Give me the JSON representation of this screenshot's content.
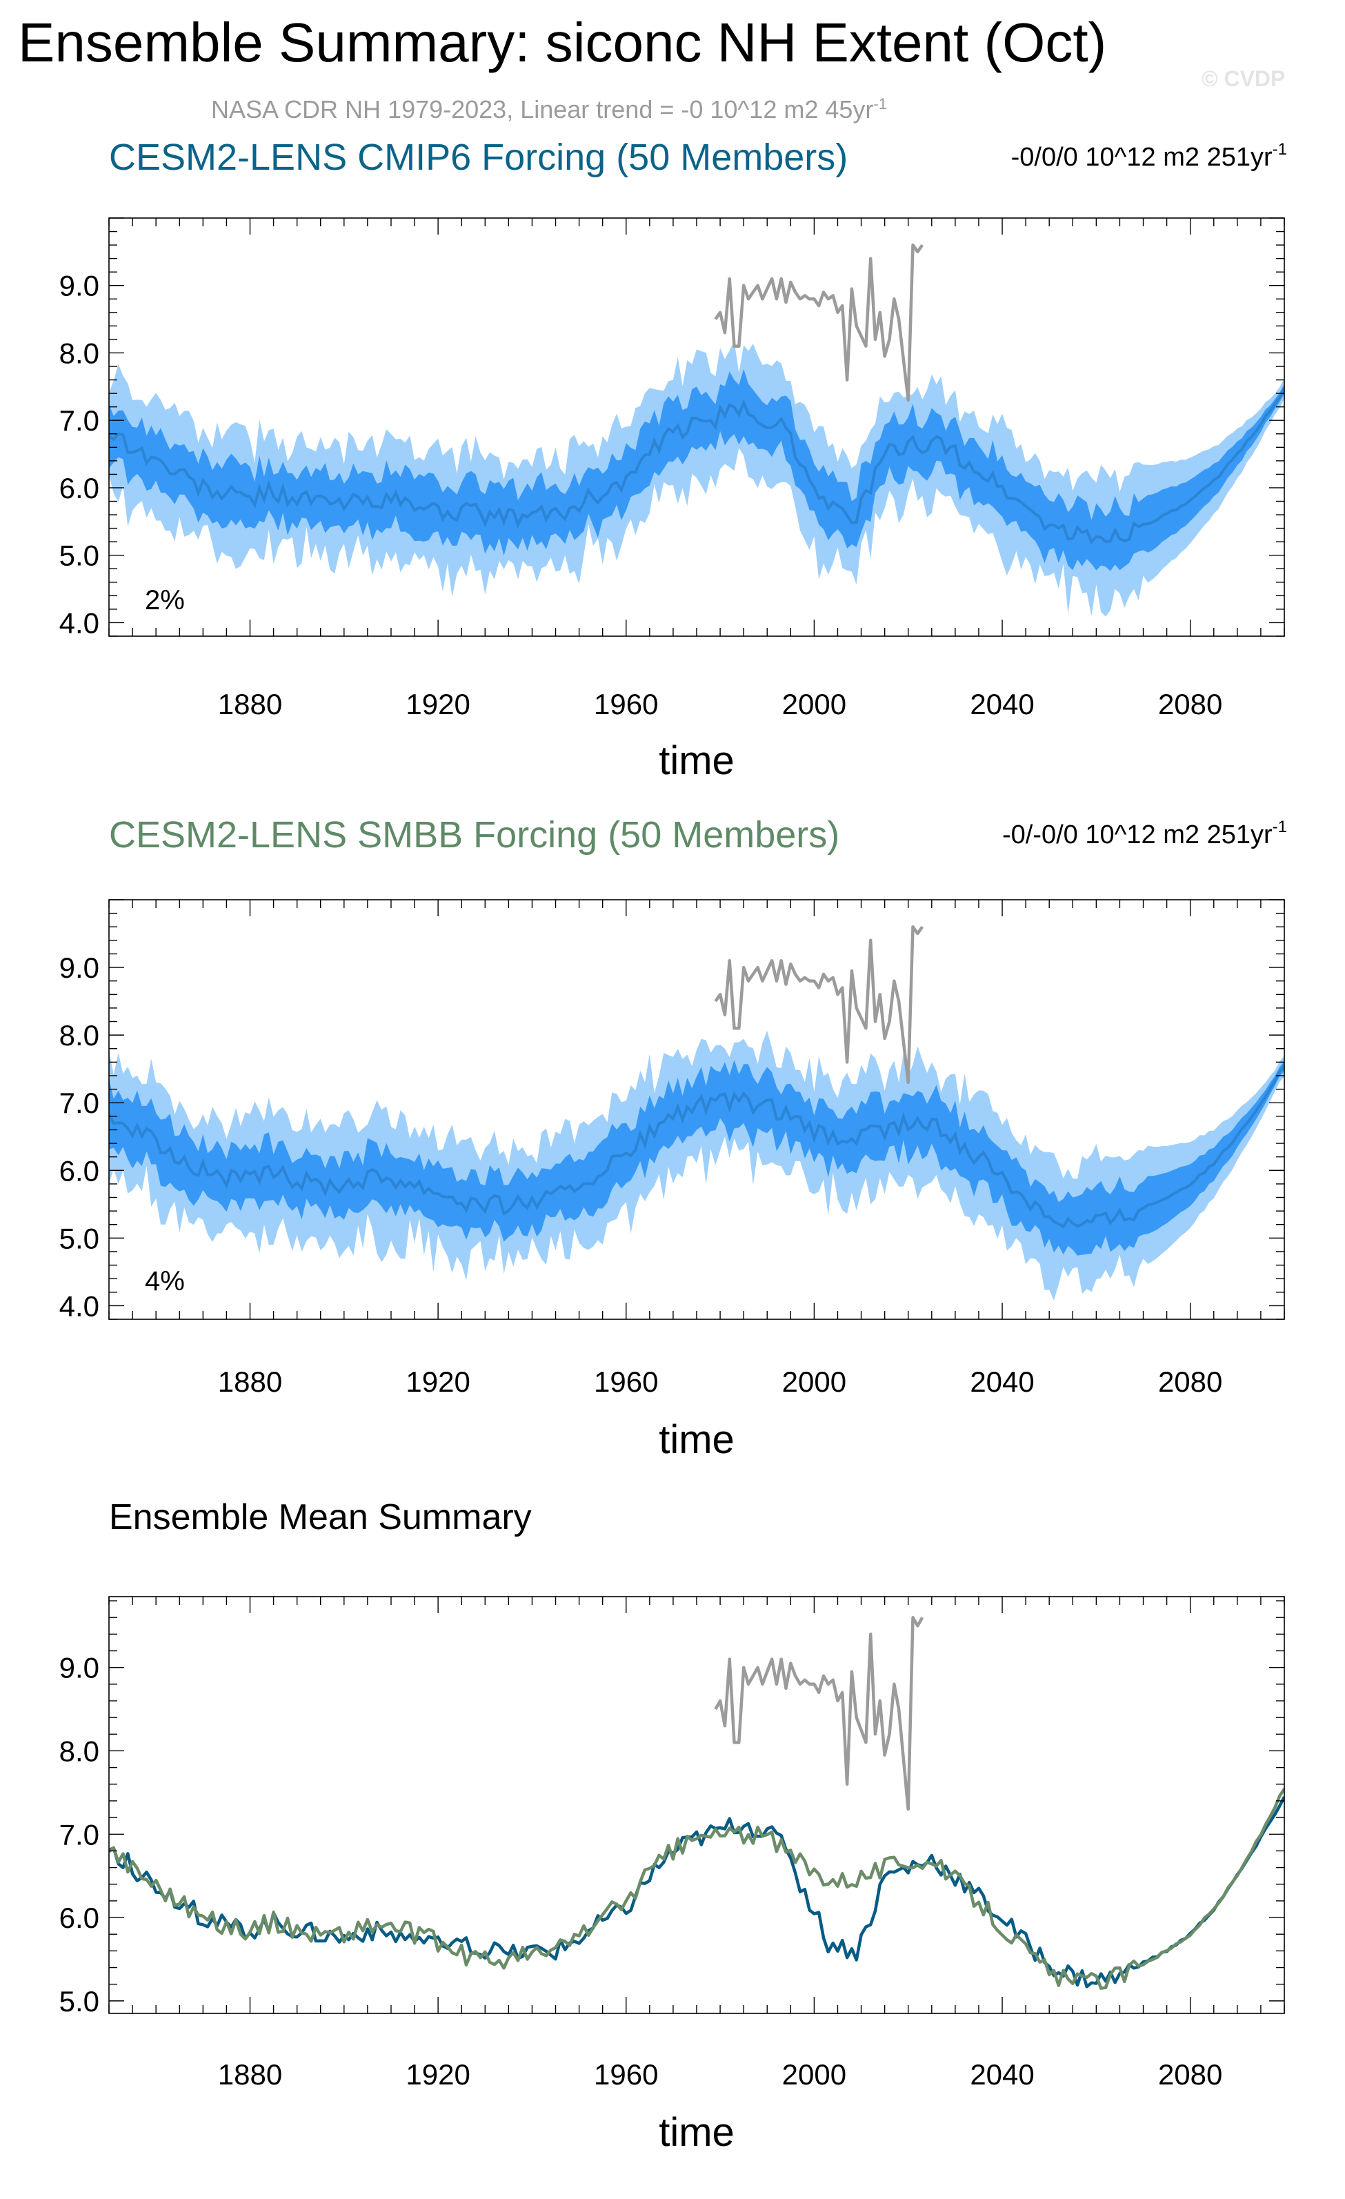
{
  "header": {
    "title": "Ensemble Summary: siconc NH Extent (Oct)",
    "subtitle": "NASA CDR NH 1979-2023, Linear trend = -0 10^12 m2 45yr",
    "subtitle_sup": "-1",
    "watermark": "© CVDP"
  },
  "colors": {
    "cmip6_title": "#0b6389",
    "smbb_title": "#5f8a67",
    "band_outer": "#9fd0fb",
    "band_inner": "#3799f5",
    "mean_line": "#2c84d5",
    "obs_line": "#9b9b9b",
    "cmip6_mean": "#065b85",
    "smbb_mean": "#6b8c68"
  },
  "chart_data": [
    {
      "type": "area",
      "title": "CESM2-LENS CMIP6 Forcing (50 Members)",
      "trend_label": "-0/0/0 10^12 m2 251yr",
      "trend_sup": "-1",
      "percent_label": "2%",
      "xlabel": "time",
      "ylabel": "",
      "xlim": [
        1850,
        2100
      ],
      "ylim": [
        3.8,
        10.0
      ],
      "xticks": [
        1880,
        1920,
        1960,
        2000,
        2040,
        2080
      ],
      "yticks": [
        4.0,
        5.0,
        6.0,
        7.0,
        8.0,
        9.0
      ],
      "ytick_labels": [
        "4.0",
        "5.0",
        "6.0",
        "7.0",
        "8.0",
        "9.0"
      ],
      "ensemble_mean_knots": [
        [
          1850,
          6.85
        ],
        [
          1855,
          6.6
        ],
        [
          1860,
          6.4
        ],
        [
          1865,
          6.2
        ],
        [
          1870,
          6.0
        ],
        [
          1875,
          5.9
        ],
        [
          1880,
          5.85
        ],
        [
          1885,
          5.95
        ],
        [
          1890,
          5.85
        ],
        [
          1895,
          5.8
        ],
        [
          1900,
          5.75
        ],
        [
          1905,
          5.85
        ],
        [
          1910,
          5.8
        ],
        [
          1915,
          5.75
        ],
        [
          1920,
          5.65
        ],
        [
          1925,
          5.65
        ],
        [
          1930,
          5.6
        ],
        [
          1935,
          5.55
        ],
        [
          1940,
          5.6
        ],
        [
          1945,
          5.6
        ],
        [
          1950,
          5.75
        ],
        [
          1955,
          5.95
        ],
        [
          1960,
          6.1
        ],
        [
          1965,
          6.5
        ],
        [
          1970,
          6.8
        ],
        [
          1975,
          6.95
        ],
        [
          1980,
          7.05
        ],
        [
          1985,
          7.15
        ],
        [
          1990,
          7.0
        ],
        [
          1994,
          6.9
        ],
        [
          1997,
          6.4
        ],
        [
          2000,
          6.1
        ],
        [
          2003,
          5.7
        ],
        [
          2006,
          5.65
        ],
        [
          2009,
          5.6
        ],
        [
          2012,
          6.0
        ],
        [
          2015,
          6.5
        ],
        [
          2020,
          6.6
        ],
        [
          2025,
          6.7
        ],
        [
          2030,
          6.5
        ],
        [
          2035,
          6.25
        ],
        [
          2040,
          6.0
        ],
        [
          2045,
          5.7
        ],
        [
          2050,
          5.45
        ],
        [
          2055,
          5.3
        ],
        [
          2060,
          5.25
        ],
        [
          2065,
          5.3
        ],
        [
          2070,
          5.45
        ],
        [
          2075,
          5.6
        ],
        [
          2080,
          5.8
        ],
        [
          2085,
          6.1
        ],
        [
          2090,
          6.5
        ],
        [
          2095,
          6.95
        ],
        [
          2100,
          7.45
        ]
      ],
      "obs": {
        "x": [
          1979,
          1980,
          1981,
          1982,
          1983,
          1984,
          1985,
          1986,
          1987,
          1988,
          1989,
          1990,
          1991,
          1992,
          1993,
          1994,
          1995,
          1996,
          1997,
          1998,
          1999,
          2000,
          2001,
          2002,
          2003,
          2004,
          2005,
          2006,
          2007,
          2008,
          2009,
          2010,
          2011,
          2012,
          2013,
          2014,
          2015,
          2016,
          2017,
          2018,
          2019,
          2020,
          2021,
          2022,
          2023
        ],
        "y": [
          8.5,
          8.6,
          8.3,
          9.1,
          8.1,
          8.1,
          9.0,
          8.8,
          8.9,
          9.0,
          8.8,
          8.95,
          9.1,
          8.8,
          9.1,
          8.75,
          9.05,
          8.9,
          8.8,
          8.85,
          8.8,
          8.8,
          8.7,
          8.9,
          8.8,
          8.85,
          8.6,
          8.7,
          7.6,
          8.95,
          8.4,
          8.25,
          8.1,
          9.4,
          8.2,
          8.6,
          7.95,
          8.2,
          8.8,
          8.5,
          7.9,
          7.3,
          9.6,
          9.5,
          9.6
        ]
      }
    },
    {
      "type": "area",
      "title": "CESM2-LENS SMBB Forcing (50 Members)",
      "trend_label": "-0/-0/0 10^12 m2 251yr",
      "trend_sup": "-1",
      "percent_label": "4%",
      "xlabel": "time",
      "ylabel": "",
      "xlim": [
        1850,
        2100
      ],
      "ylim": [
        3.8,
        10.0
      ],
      "xticks": [
        1880,
        1920,
        1960,
        2000,
        2040,
        2080
      ],
      "yticks": [
        4.0,
        5.0,
        6.0,
        7.0,
        8.0,
        9.0
      ],
      "ytick_labels": [
        "4.0",
        "5.0",
        "6.0",
        "7.0",
        "8.0",
        "9.0"
      ],
      "ensemble_mean_knots": [
        [
          1850,
          6.85
        ],
        [
          1855,
          6.6
        ],
        [
          1860,
          6.4
        ],
        [
          1865,
          6.2
        ],
        [
          1870,
          6.0
        ],
        [
          1875,
          5.9
        ],
        [
          1880,
          5.85
        ],
        [
          1885,
          5.95
        ],
        [
          1890,
          5.85
        ],
        [
          1895,
          5.8
        ],
        [
          1900,
          5.8
        ],
        [
          1905,
          5.9
        ],
        [
          1910,
          5.9
        ],
        [
          1915,
          5.8
        ],
        [
          1920,
          5.7
        ],
        [
          1925,
          5.55
        ],
        [
          1930,
          5.5
        ],
        [
          1935,
          5.5
        ],
        [
          1940,
          5.55
        ],
        [
          1945,
          5.6
        ],
        [
          1950,
          5.8
        ],
        [
          1955,
          6.0
        ],
        [
          1960,
          6.2
        ],
        [
          1965,
          6.55
        ],
        [
          1970,
          6.8
        ],
        [
          1975,
          6.95
        ],
        [
          1980,
          7.0
        ],
        [
          1985,
          7.0
        ],
        [
          1990,
          6.95
        ],
        [
          1995,
          6.75
        ],
        [
          2000,
          6.55
        ],
        [
          2005,
          6.45
        ],
        [
          2010,
          6.5
        ],
        [
          2015,
          6.6
        ],
        [
          2020,
          6.7
        ],
        [
          2025,
          6.65
        ],
        [
          2030,
          6.45
        ],
        [
          2035,
          6.2
        ],
        [
          2040,
          5.9
        ],
        [
          2045,
          5.6
        ],
        [
          2050,
          5.35
        ],
        [
          2055,
          5.2
        ],
        [
          2060,
          5.25
        ],
        [
          2065,
          5.3
        ],
        [
          2070,
          5.45
        ],
        [
          2075,
          5.6
        ],
        [
          2080,
          5.8
        ],
        [
          2085,
          6.1
        ],
        [
          2090,
          6.5
        ],
        [
          2095,
          7.0
        ],
        [
          2100,
          7.55
        ]
      ],
      "obs": {
        "x": [
          1979,
          1980,
          1981,
          1982,
          1983,
          1984,
          1985,
          1986,
          1987,
          1988,
          1989,
          1990,
          1991,
          1992,
          1993,
          1994,
          1995,
          1996,
          1997,
          1998,
          1999,
          2000,
          2001,
          2002,
          2003,
          2004,
          2005,
          2006,
          2007,
          2008,
          2009,
          2010,
          2011,
          2012,
          2013,
          2014,
          2015,
          2016,
          2017,
          2018,
          2019,
          2020,
          2021,
          2022,
          2023
        ],
        "y": [
          8.5,
          8.6,
          8.3,
          9.1,
          8.1,
          8.1,
          9.0,
          8.8,
          8.9,
          9.0,
          8.8,
          8.95,
          9.1,
          8.8,
          9.1,
          8.75,
          9.05,
          8.9,
          8.8,
          8.85,
          8.8,
          8.8,
          8.7,
          8.9,
          8.8,
          8.85,
          8.6,
          8.7,
          7.6,
          8.95,
          8.4,
          8.25,
          8.1,
          9.4,
          8.2,
          8.6,
          7.95,
          8.2,
          8.8,
          8.5,
          7.9,
          7.3,
          9.6,
          9.5,
          9.6
        ]
      }
    },
    {
      "type": "line",
      "title": "Ensemble Mean Summary",
      "xlabel": "time",
      "ylabel": "",
      "xlim": [
        1850,
        2100
      ],
      "ylim": [
        4.85,
        9.85
      ],
      "xticks": [
        1880,
        1920,
        1960,
        2000,
        2040,
        2080
      ],
      "yticks": [
        5.0,
        6.0,
        7.0,
        8.0,
        9.0
      ],
      "ytick_labels": [
        "5.0",
        "6.0",
        "7.0",
        "8.0",
        "9.0"
      ],
      "series": [
        {
          "name": "CESM2-LENS CMIP6 Forcing",
          "color_key": "cmip6_mean",
          "knots": [
            [
              1850,
              6.85
            ],
            [
              1855,
              6.6
            ],
            [
              1860,
              6.4
            ],
            [
              1865,
              6.2
            ],
            [
              1870,
              6.0
            ],
            [
              1875,
              5.9
            ],
            [
              1880,
              5.85
            ],
            [
              1885,
              5.95
            ],
            [
              1890,
              5.85
            ],
            [
              1895,
              5.8
            ],
            [
              1900,
              5.75
            ],
            [
              1905,
              5.85
            ],
            [
              1910,
              5.8
            ],
            [
              1915,
              5.75
            ],
            [
              1920,
              5.65
            ],
            [
              1925,
              5.65
            ],
            [
              1930,
              5.6
            ],
            [
              1935,
              5.55
            ],
            [
              1940,
              5.6
            ],
            [
              1945,
              5.6
            ],
            [
              1950,
              5.75
            ],
            [
              1955,
              5.95
            ],
            [
              1960,
              6.1
            ],
            [
              1965,
              6.5
            ],
            [
              1970,
              6.8
            ],
            [
              1975,
              6.95
            ],
            [
              1980,
              7.05
            ],
            [
              1985,
              7.15
            ],
            [
              1990,
              7.0
            ],
            [
              1994,
              6.9
            ],
            [
              1997,
              6.4
            ],
            [
              2000,
              6.1
            ],
            [
              2003,
              5.7
            ],
            [
              2006,
              5.65
            ],
            [
              2009,
              5.6
            ],
            [
              2012,
              6.0
            ],
            [
              2015,
              6.5
            ],
            [
              2020,
              6.6
            ],
            [
              2025,
              6.7
            ],
            [
              2030,
              6.5
            ],
            [
              2035,
              6.25
            ],
            [
              2040,
              6.0
            ],
            [
              2045,
              5.7
            ],
            [
              2050,
              5.45
            ],
            [
              2055,
              5.3
            ],
            [
              2060,
              5.25
            ],
            [
              2065,
              5.3
            ],
            [
              2070,
              5.45
            ],
            [
              2075,
              5.6
            ],
            [
              2080,
              5.8
            ],
            [
              2085,
              6.1
            ],
            [
              2090,
              6.5
            ],
            [
              2095,
              6.95
            ],
            [
              2100,
              7.45
            ]
          ]
        },
        {
          "name": "CESM2-LENS SMBB Forcing",
          "color_key": "smbb_mean",
          "knots": [
            [
              1850,
              6.85
            ],
            [
              1855,
              6.6
            ],
            [
              1860,
              6.4
            ],
            [
              1865,
              6.2
            ],
            [
              1870,
              6.0
            ],
            [
              1875,
              5.9
            ],
            [
              1880,
              5.85
            ],
            [
              1885,
              5.95
            ],
            [
              1890,
              5.85
            ],
            [
              1895,
              5.8
            ],
            [
              1900,
              5.8
            ],
            [
              1905,
              5.9
            ],
            [
              1910,
              5.9
            ],
            [
              1915,
              5.8
            ],
            [
              1920,
              5.7
            ],
            [
              1925,
              5.55
            ],
            [
              1930,
              5.5
            ],
            [
              1935,
              5.5
            ],
            [
              1940,
              5.55
            ],
            [
              1945,
              5.6
            ],
            [
              1950,
              5.8
            ],
            [
              1955,
              6.0
            ],
            [
              1960,
              6.2
            ],
            [
              1965,
              6.55
            ],
            [
              1970,
              6.8
            ],
            [
              1975,
              6.95
            ],
            [
              1980,
              7.0
            ],
            [
              1985,
              7.0
            ],
            [
              1990,
              6.95
            ],
            [
              1995,
              6.75
            ],
            [
              2000,
              6.55
            ],
            [
              2005,
              6.45
            ],
            [
              2010,
              6.5
            ],
            [
              2015,
              6.6
            ],
            [
              2020,
              6.7
            ],
            [
              2025,
              6.65
            ],
            [
              2030,
              6.45
            ],
            [
              2035,
              6.2
            ],
            [
              2040,
              5.9
            ],
            [
              2045,
              5.6
            ],
            [
              2050,
              5.35
            ],
            [
              2055,
              5.2
            ],
            [
              2060,
              5.25
            ],
            [
              2065,
              5.3
            ],
            [
              2070,
              5.45
            ],
            [
              2075,
              5.6
            ],
            [
              2080,
              5.8
            ],
            [
              2085,
              6.1
            ],
            [
              2090,
              6.5
            ],
            [
              2095,
              7.0
            ],
            [
              2100,
              7.55
            ]
          ]
        }
      ],
      "obs": {
        "x": [
          1979,
          1980,
          1981,
          1982,
          1983,
          1984,
          1985,
          1986,
          1987,
          1988,
          1989,
          1990,
          1991,
          1992,
          1993,
          1994,
          1995,
          1996,
          1997,
          1998,
          1999,
          2000,
          2001,
          2002,
          2003,
          2004,
          2005,
          2006,
          2007,
          2008,
          2009,
          2010,
          2011,
          2012,
          2013,
          2014,
          2015,
          2016,
          2017,
          2018,
          2019,
          2020,
          2021,
          2022,
          2023
        ],
        "y": [
          8.5,
          8.6,
          8.3,
          9.1,
          8.1,
          8.1,
          9.0,
          8.8,
          8.9,
          9.0,
          8.8,
          8.95,
          9.1,
          8.8,
          9.1,
          8.75,
          9.05,
          8.9,
          8.8,
          8.85,
          8.8,
          8.8,
          8.7,
          8.9,
          8.8,
          8.85,
          8.6,
          8.7,
          7.6,
          8.95,
          8.4,
          8.25,
          8.1,
          9.4,
          8.2,
          8.6,
          7.95,
          8.2,
          8.8,
          8.5,
          7.9,
          7.3,
          9.6,
          9.5,
          9.6
        ]
      }
    }
  ]
}
